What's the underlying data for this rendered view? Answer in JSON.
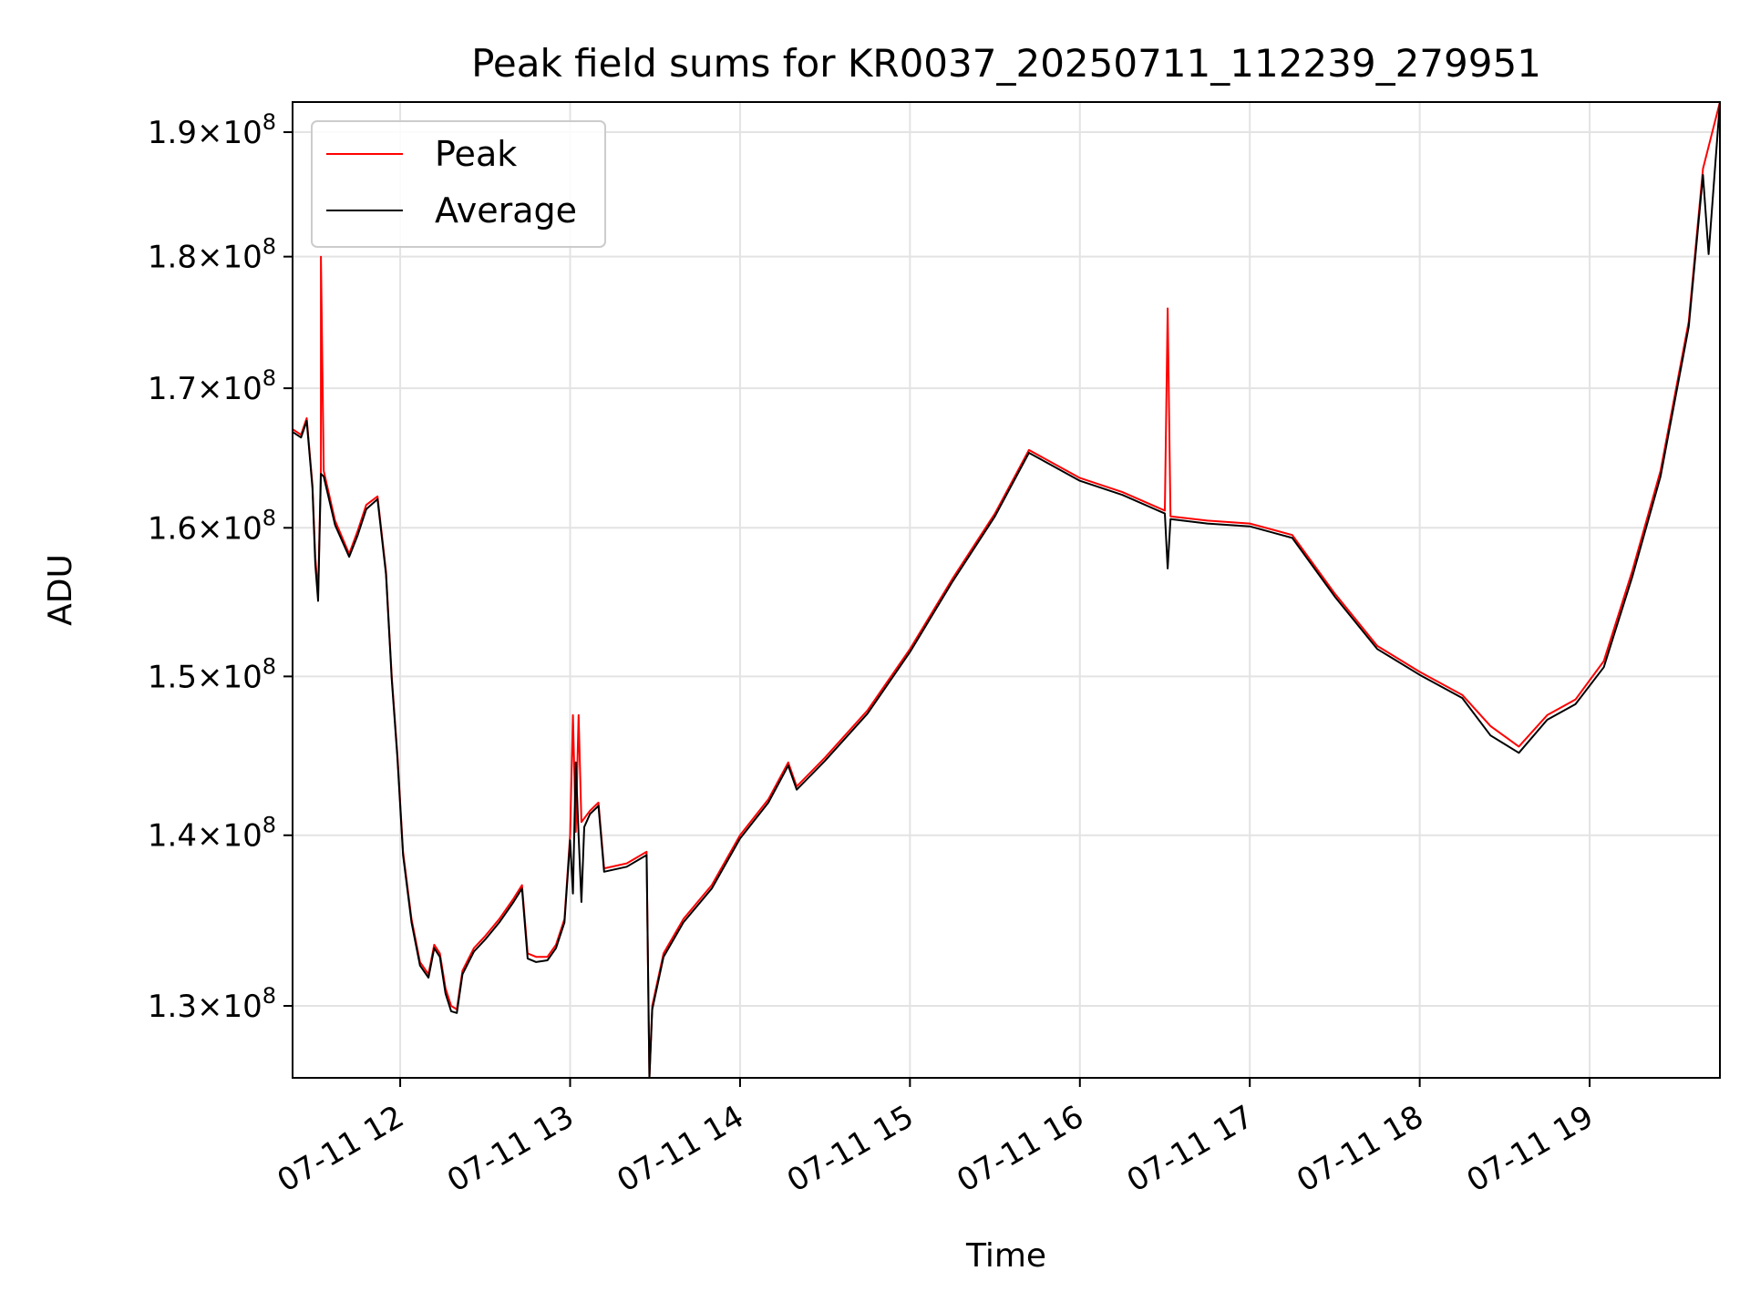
{
  "chart_data": {
    "type": "line",
    "title": "Peak field sums for KR0037_20250711_112239_279951",
    "xlabel": "Time",
    "ylabel": "ADU",
    "yscale": "log",
    "ylim": [
      126000000,
      192500000
    ],
    "xlim": [
      "2025-07-11 11:22",
      "2025-07-11 19:46"
    ],
    "grid": true,
    "legend_position": "top-left",
    "xticks": [
      {
        "t": "2025-07-11 12:00",
        "label": "07-11 12"
      },
      {
        "t": "2025-07-11 13:00",
        "label": "07-11 13"
      },
      {
        "t": "2025-07-11 14:00",
        "label": "07-11 14"
      },
      {
        "t": "2025-07-11 15:00",
        "label": "07-11 15"
      },
      {
        "t": "2025-07-11 16:00",
        "label": "07-11 16"
      },
      {
        "t": "2025-07-11 17:00",
        "label": "07-11 17"
      },
      {
        "t": "2025-07-11 18:00",
        "label": "07-11 18"
      },
      {
        "t": "2025-07-11 19:00",
        "label": "07-11 19"
      }
    ],
    "yticks": [
      {
        "value": 130000000,
        "mantissa": "1.3",
        "base": "10",
        "exp": "8"
      },
      {
        "value": 140000000,
        "mantissa": "1.4",
        "base": "10",
        "exp": "8"
      },
      {
        "value": 150000000,
        "mantissa": "1.5",
        "base": "10",
        "exp": "8"
      },
      {
        "value": 160000000,
        "mantissa": "1.6",
        "base": "10",
        "exp": "8"
      },
      {
        "value": 170000000,
        "mantissa": "1.7",
        "base": "10",
        "exp": "8"
      },
      {
        "value": 180000000,
        "mantissa": "1.8",
        "base": "10",
        "exp": "8"
      },
      {
        "value": 190000000,
        "mantissa": "1.9",
        "base": "10",
        "exp": "8"
      }
    ],
    "series": [
      {
        "name": "Peak",
        "color": "#ff0000",
        "points": [
          [
            "2025-07-11 11:22",
            167000000
          ],
          [
            "2025-07-11 11:25",
            166600000
          ],
          [
            "2025-07-11 11:27",
            167800000
          ],
          [
            "2025-07-11 11:29",
            163000000
          ],
          [
            "2025-07-11 11:30",
            158000000
          ],
          [
            "2025-07-11 11:31",
            155500000
          ],
          [
            "2025-07-11 11:32",
            164300000
          ],
          [
            "2025-07-11 11:32",
            180000000
          ],
          [
            "2025-07-11 11:33",
            164000000
          ],
          [
            "2025-07-11 11:37",
            160500000
          ],
          [
            "2025-07-11 11:42",
            158200000
          ],
          [
            "2025-07-11 11:45",
            159800000
          ],
          [
            "2025-07-11 11:48",
            161600000
          ],
          [
            "2025-07-11 11:52",
            162200000
          ],
          [
            "2025-07-11 11:55",
            157000000
          ],
          [
            "2025-07-11 11:57",
            150000000
          ],
          [
            "2025-07-11 11:59",
            145000000
          ],
          [
            "2025-07-11 12:01",
            139000000
          ],
          [
            "2025-07-11 12:04",
            135000000
          ],
          [
            "2025-07-11 12:07",
            132500000
          ],
          [
            "2025-07-11 12:10",
            131800000
          ],
          [
            "2025-07-11 12:12",
            133500000
          ],
          [
            "2025-07-11 12:14",
            133000000
          ],
          [
            "2025-07-11 12:16",
            131000000
          ],
          [
            "2025-07-11 12:18",
            130000000
          ],
          [
            "2025-07-11 12:20",
            129800000
          ],
          [
            "2025-07-11 12:22",
            132000000
          ],
          [
            "2025-07-11 12:26",
            133300000
          ],
          [
            "2025-07-11 12:30",
            134000000
          ],
          [
            "2025-07-11 12:35",
            135000000
          ],
          [
            "2025-07-11 12:40",
            136200000
          ],
          [
            "2025-07-11 12:43",
            137000000
          ],
          [
            "2025-07-11 12:45",
            133000000
          ],
          [
            "2025-07-11 12:48",
            132800000
          ],
          [
            "2025-07-11 12:52",
            132800000
          ],
          [
            "2025-07-11 12:55",
            133500000
          ],
          [
            "2025-07-11 12:58",
            135000000
          ],
          [
            "2025-07-11 13:00",
            140000000
          ],
          [
            "2025-07-11 13:01",
            147500000
          ],
          [
            "2025-07-11 13:02",
            140200000
          ],
          [
            "2025-07-11 13:03",
            147500000
          ],
          [
            "2025-07-11 13:04",
            140800000
          ],
          [
            "2025-07-11 13:07",
            141500000
          ],
          [
            "2025-07-11 13:10",
            142000000
          ],
          [
            "2025-07-11 13:12",
            138000000
          ],
          [
            "2025-07-11 13:20",
            138300000
          ],
          [
            "2025-07-11 13:27",
            139000000
          ],
          [
            "2025-07-11 13:28",
            126000000
          ],
          [
            "2025-07-11 13:29",
            130000000
          ],
          [
            "2025-07-11 13:33",
            133000000
          ],
          [
            "2025-07-11 13:40",
            135000000
          ],
          [
            "2025-07-11 13:50",
            137000000
          ],
          [
            "2025-07-11 14:00",
            140000000
          ],
          [
            "2025-07-11 14:10",
            142200000
          ],
          [
            "2025-07-11 14:17",
            144500000
          ],
          [
            "2025-07-11 14:20",
            143000000
          ],
          [
            "2025-07-11 14:30",
            144800000
          ],
          [
            "2025-07-11 14:45",
            147800000
          ],
          [
            "2025-07-11 15:00",
            151800000
          ],
          [
            "2025-07-11 15:15",
            156500000
          ],
          [
            "2025-07-11 15:30",
            161000000
          ],
          [
            "2025-07-11 15:42",
            165500000
          ],
          [
            "2025-07-11 16:00",
            163500000
          ],
          [
            "2025-07-11 16:15",
            162500000
          ],
          [
            "2025-07-11 16:30",
            161200000
          ],
          [
            "2025-07-11 16:31",
            176000000
          ],
          [
            "2025-07-11 16:32",
            160800000
          ],
          [
            "2025-07-11 16:45",
            160500000
          ],
          [
            "2025-07-11 17:00",
            160300000
          ],
          [
            "2025-07-11 17:15",
            159500000
          ],
          [
            "2025-07-11 17:30",
            155500000
          ],
          [
            "2025-07-11 17:45",
            152000000
          ],
          [
            "2025-07-11 18:00",
            150300000
          ],
          [
            "2025-07-11 18:15",
            148800000
          ],
          [
            "2025-07-11 18:25",
            146800000
          ],
          [
            "2025-07-11 18:35",
            145500000
          ],
          [
            "2025-07-11 18:45",
            147500000
          ],
          [
            "2025-07-11 18:55",
            148500000
          ],
          [
            "2025-07-11 19:05",
            151000000
          ],
          [
            "2025-07-11 19:15",
            157000000
          ],
          [
            "2025-07-11 19:25",
            164000000
          ],
          [
            "2025-07-11 19:35",
            175000000
          ],
          [
            "2025-07-11 19:40",
            187000000
          ],
          [
            "2025-07-11 19:46",
            192500000
          ]
        ]
      },
      {
        "name": "Average",
        "color": "#000000",
        "points": [
          [
            "2025-07-11 11:22",
            166800000
          ],
          [
            "2025-07-11 11:25",
            166400000
          ],
          [
            "2025-07-11 11:27",
            167600000
          ],
          [
            "2025-07-11 11:29",
            162800000
          ],
          [
            "2025-07-11 11:30",
            157500000
          ],
          [
            "2025-07-11 11:31",
            155000000
          ],
          [
            "2025-07-11 11:32",
            163800000
          ],
          [
            "2025-07-11 11:33",
            163600000
          ],
          [
            "2025-07-11 11:37",
            160200000
          ],
          [
            "2025-07-11 11:42",
            158000000
          ],
          [
            "2025-07-11 11:45",
            159500000
          ],
          [
            "2025-07-11 11:48",
            161300000
          ],
          [
            "2025-07-11 11:52",
            162000000
          ],
          [
            "2025-07-11 11:55",
            156800000
          ],
          [
            "2025-07-11 11:57",
            149800000
          ],
          [
            "2025-07-11 11:59",
            144800000
          ],
          [
            "2025-07-11 12:01",
            138800000
          ],
          [
            "2025-07-11 12:04",
            134800000
          ],
          [
            "2025-07-11 12:07",
            132300000
          ],
          [
            "2025-07-11 12:10",
            131600000
          ],
          [
            "2025-07-11 12:12",
            133300000
          ],
          [
            "2025-07-11 12:14",
            132800000
          ],
          [
            "2025-07-11 12:16",
            130700000
          ],
          [
            "2025-07-11 12:18",
            129700000
          ],
          [
            "2025-07-11 12:20",
            129600000
          ],
          [
            "2025-07-11 12:22",
            131800000
          ],
          [
            "2025-07-11 12:26",
            133100000
          ],
          [
            "2025-07-11 12:30",
            133800000
          ],
          [
            "2025-07-11 12:35",
            134800000
          ],
          [
            "2025-07-11 12:40",
            136000000
          ],
          [
            "2025-07-11 12:43",
            136800000
          ],
          [
            "2025-07-11 12:45",
            132700000
          ],
          [
            "2025-07-11 12:48",
            132500000
          ],
          [
            "2025-07-11 12:52",
            132600000
          ],
          [
            "2025-07-11 12:55",
            133300000
          ],
          [
            "2025-07-11 12:58",
            134800000
          ],
          [
            "2025-07-11 13:00",
            139700000
          ],
          [
            "2025-07-11 13:01",
            136500000
          ],
          [
            "2025-07-11 13:02",
            144500000
          ],
          [
            "2025-07-11 13:03",
            140000000
          ],
          [
            "2025-07-11 13:04",
            136000000
          ],
          [
            "2025-07-11 13:05",
            140500000
          ],
          [
            "2025-07-11 13:07",
            141300000
          ],
          [
            "2025-07-11 13:10",
            141800000
          ],
          [
            "2025-07-11 13:12",
            137800000
          ],
          [
            "2025-07-11 13:20",
            138100000
          ],
          [
            "2025-07-11 13:27",
            138800000
          ],
          [
            "2025-07-11 13:28",
            126000000
          ],
          [
            "2025-07-11 13:29",
            129800000
          ],
          [
            "2025-07-11 13:33",
            132800000
          ],
          [
            "2025-07-11 13:40",
            134800000
          ],
          [
            "2025-07-11 13:50",
            136800000
          ],
          [
            "2025-07-11 14:00",
            139800000
          ],
          [
            "2025-07-11 14:10",
            142000000
          ],
          [
            "2025-07-11 14:17",
            144300000
          ],
          [
            "2025-07-11 14:20",
            142800000
          ],
          [
            "2025-07-11 14:30",
            144600000
          ],
          [
            "2025-07-11 14:45",
            147600000
          ],
          [
            "2025-07-11 15:00",
            151600000
          ],
          [
            "2025-07-11 15:15",
            156300000
          ],
          [
            "2025-07-11 15:30",
            160800000
          ],
          [
            "2025-07-11 15:42",
            165300000
          ],
          [
            "2025-07-11 16:00",
            163300000
          ],
          [
            "2025-07-11 16:15",
            162300000
          ],
          [
            "2025-07-11 16:30",
            161000000
          ],
          [
            "2025-07-11 16:31",
            157200000
          ],
          [
            "2025-07-11 16:32",
            160600000
          ],
          [
            "2025-07-11 16:45",
            160300000
          ],
          [
            "2025-07-11 17:00",
            160100000
          ],
          [
            "2025-07-11 17:15",
            159300000
          ],
          [
            "2025-07-11 17:30",
            155300000
          ],
          [
            "2025-07-11 17:45",
            151800000
          ],
          [
            "2025-07-11 18:00",
            150100000
          ],
          [
            "2025-07-11 18:15",
            148600000
          ],
          [
            "2025-07-11 18:25",
            146200000
          ],
          [
            "2025-07-11 18:35",
            145100000
          ],
          [
            "2025-07-11 18:45",
            147200000
          ],
          [
            "2025-07-11 18:55",
            148200000
          ],
          [
            "2025-07-11 19:05",
            150600000
          ],
          [
            "2025-07-11 19:15",
            156600000
          ],
          [
            "2025-07-11 19:25",
            163600000
          ],
          [
            "2025-07-11 19:35",
            174600000
          ],
          [
            "2025-07-11 19:40",
            186500000
          ],
          [
            "2025-07-11 19:42",
            180200000
          ],
          [
            "2025-07-11 19:46",
            192500000
          ]
        ]
      }
    ]
  }
}
